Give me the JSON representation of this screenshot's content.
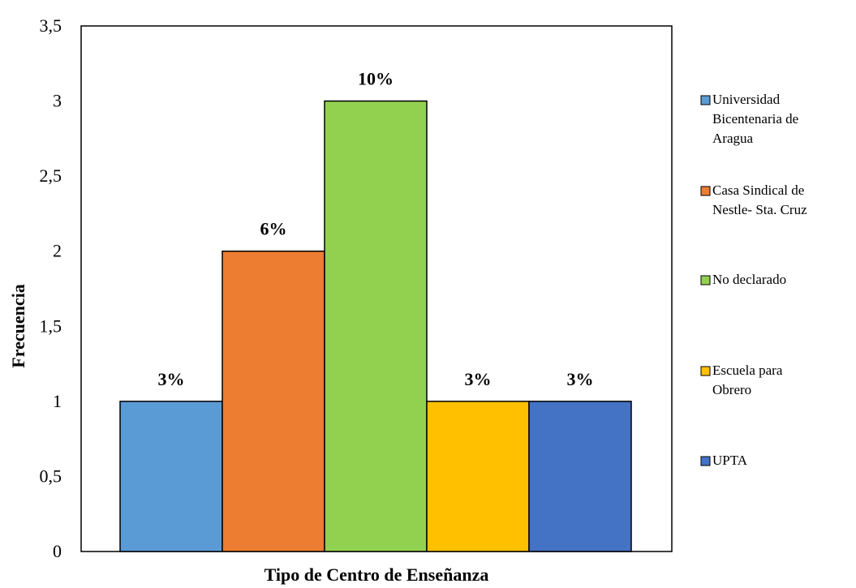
{
  "chart_data": {
    "type": "bar",
    "title": "",
    "xlabel": "Tipo de Centro de Enseñanza",
    "ylabel": "Frecuencia",
    "ylim": [
      0,
      3.5
    ],
    "yticks": [
      "0",
      "0,5",
      "1",
      "1,5",
      "2",
      "2,5",
      "3",
      "3,5"
    ],
    "grid": false,
    "legend_position": "right",
    "series": [
      {
        "name": "Universidad Bicentenaria de Aragua",
        "value": 1,
        "label": "3%",
        "color": "#5B9BD5"
      },
      {
        "name": "Casa Sindical de Nestle- Sta. Cruz",
        "value": 2,
        "label": "6%",
        "color": "#ED7D31"
      },
      {
        "name": "No declarado",
        "value": 3,
        "label": "10%",
        "color": "#92D050"
      },
      {
        "name": "Escuela para Obrero",
        "value": 1,
        "label": "3%",
        "color": "#FFC000"
      },
      {
        "name": "UPTA",
        "value": 1,
        "label": "3%",
        "color": "#4472C4"
      }
    ]
  }
}
